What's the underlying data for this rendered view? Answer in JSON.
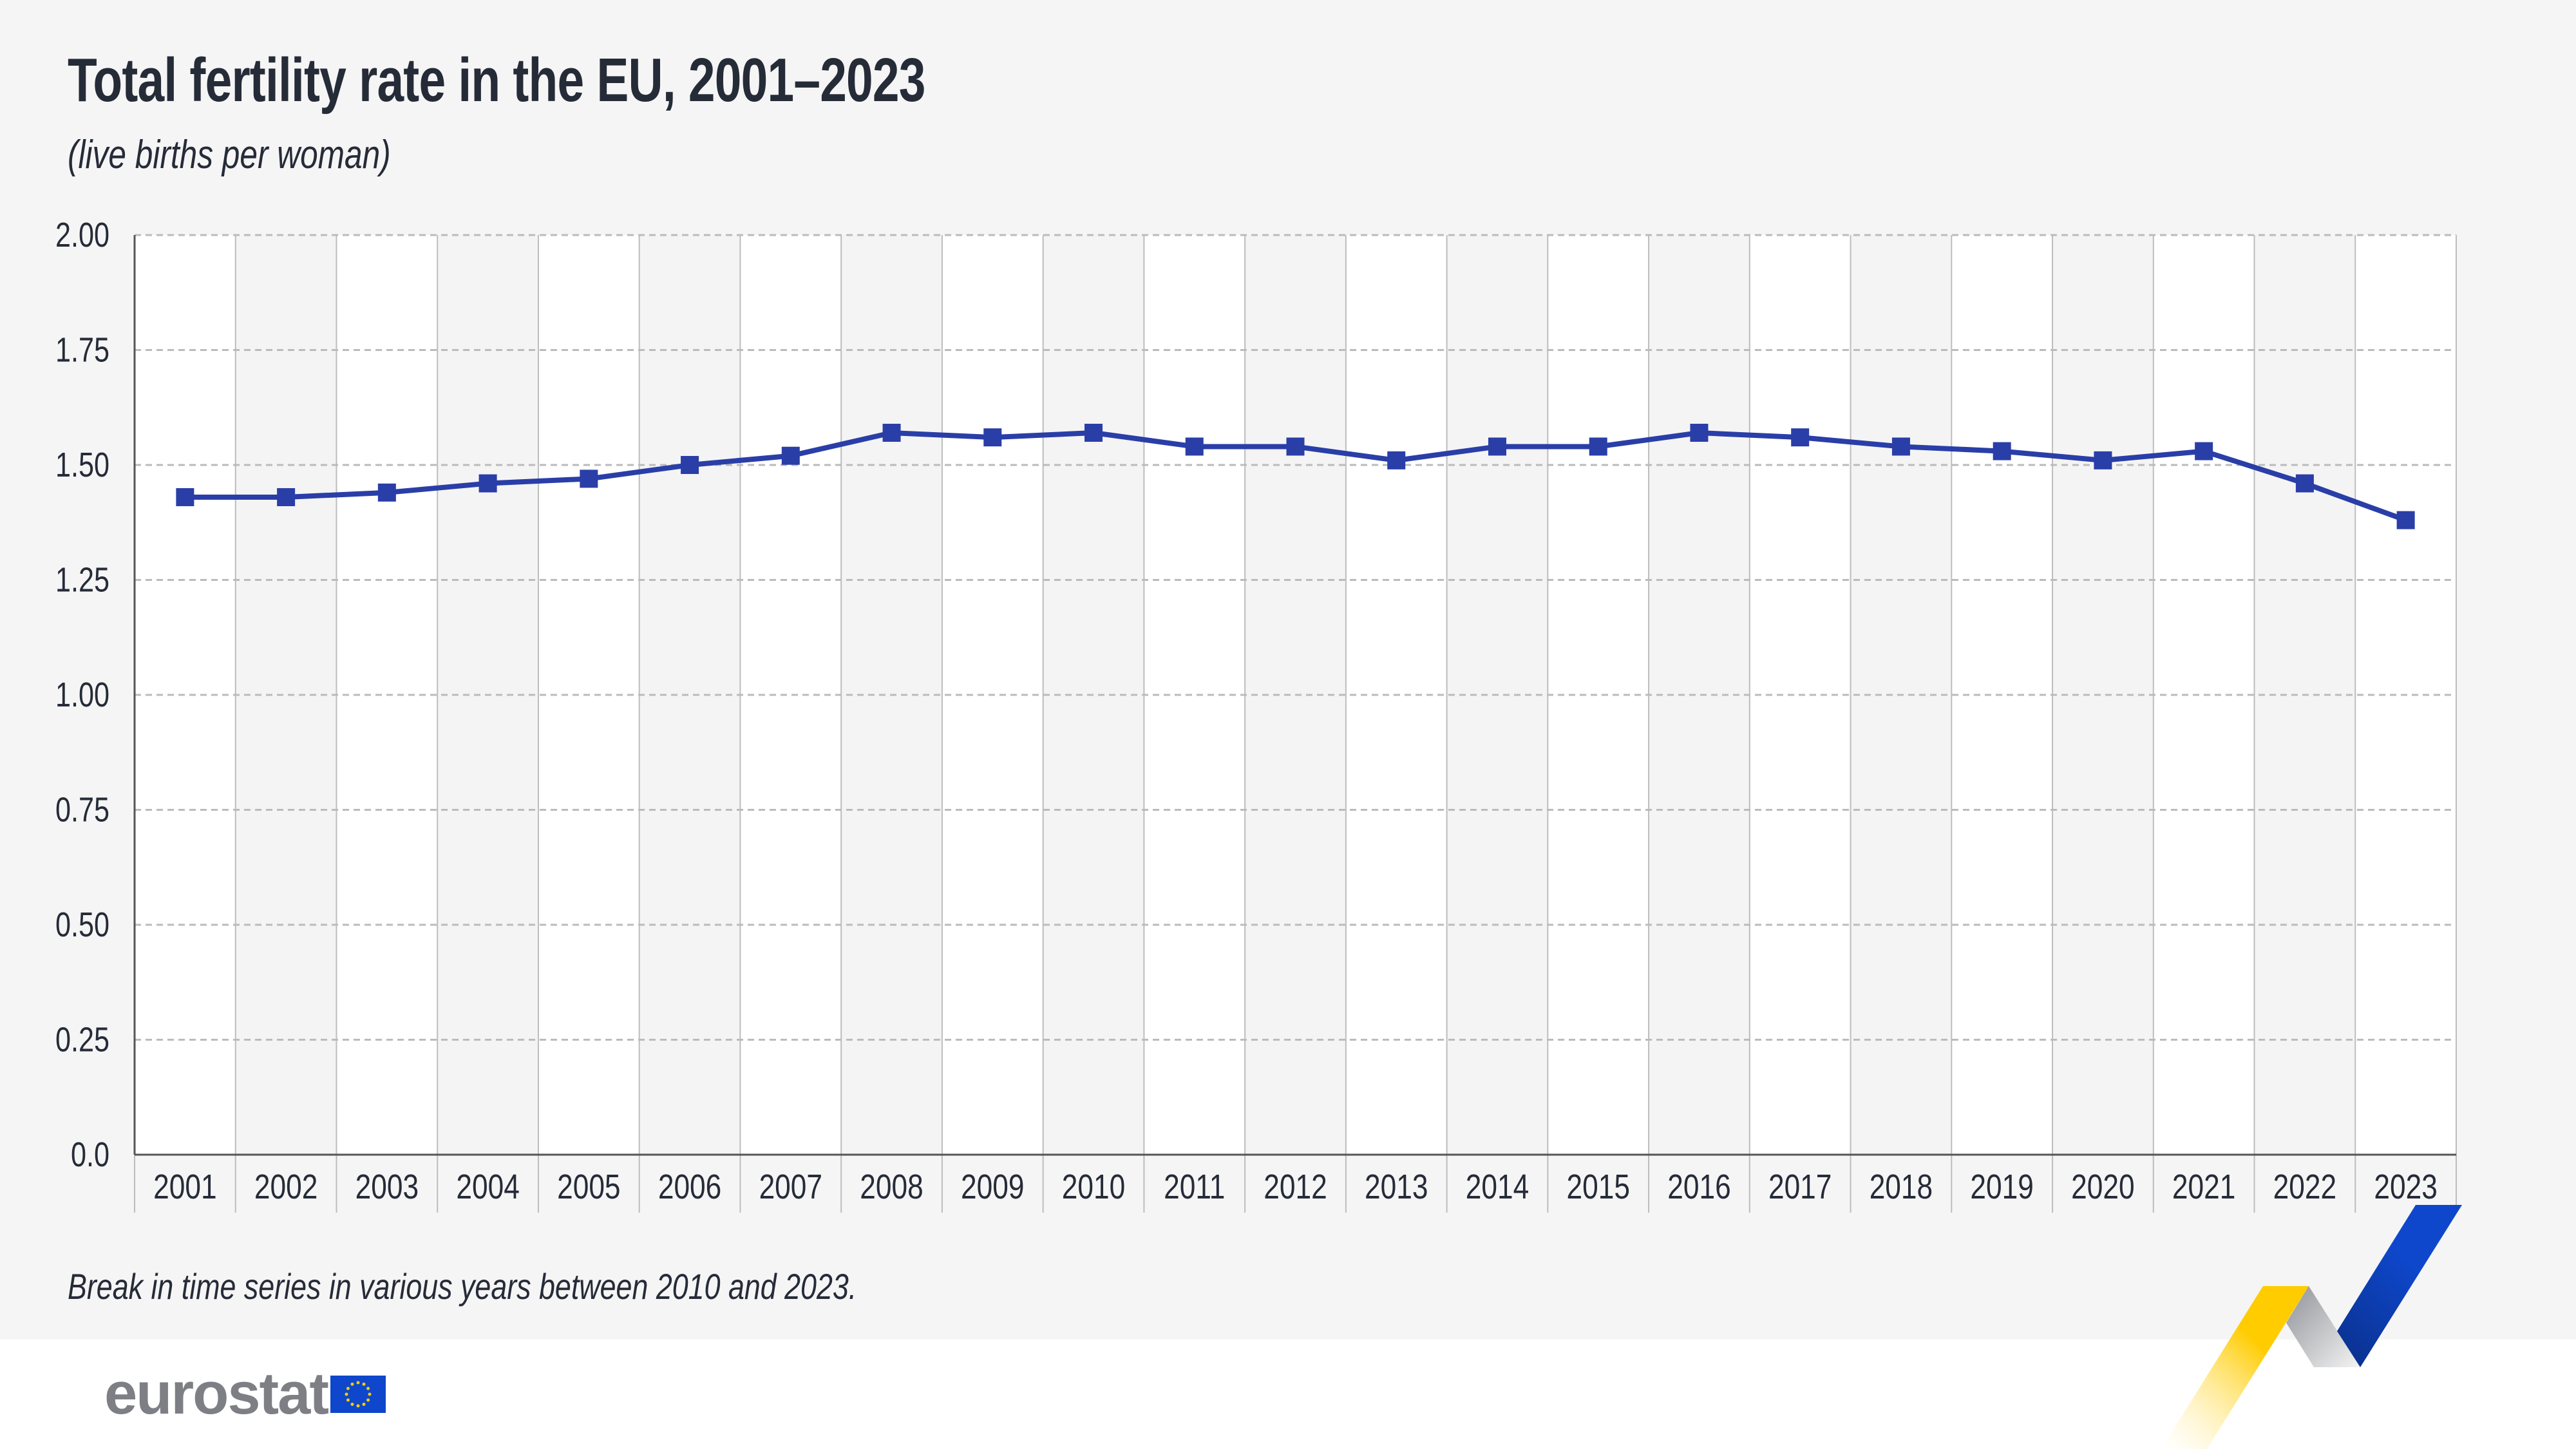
{
  "header": {
    "title": "Total fertility rate in the EU, 2001–2023",
    "subtitle": "(live births per woman)"
  },
  "footnote": "Break in time series in various years between 2010 and 2023.",
  "logo": {
    "text": "eurostat",
    "icon": "eu-flag-icon"
  },
  "colors": {
    "line": "#2a3ea8",
    "background": "#f5f5f5",
    "text": "#262b38",
    "accent_yellow": "#ffcc00",
    "accent_blue": "#0e47cb"
  },
  "chart_data": {
    "type": "line",
    "title": "Total fertility rate in the EU, 2001–2023",
    "ylabel": "(live births per woman)",
    "categories": [
      "2001",
      "2002",
      "2003",
      "2004",
      "2005",
      "2006",
      "2007",
      "2008",
      "2009",
      "2010",
      "2011",
      "2012",
      "2013",
      "2014",
      "2015",
      "2016",
      "2017",
      "2018",
      "2019",
      "2020",
      "2021",
      "2022",
      "2023"
    ],
    "values": [
      1.43,
      1.43,
      1.44,
      1.46,
      1.47,
      1.5,
      1.52,
      1.57,
      1.56,
      1.57,
      1.54,
      1.54,
      1.51,
      1.54,
      1.54,
      1.57,
      1.56,
      1.54,
      1.53,
      1.51,
      1.53,
      1.46,
      1.38
    ],
    "ylim": [
      0,
      2.0
    ],
    "yticks": [
      "0.0",
      "0.25",
      "0.50",
      "0.75",
      "1.00",
      "1.25",
      "1.50",
      "1.75",
      "2.00"
    ],
    "grid": true,
    "marker": "square",
    "legend": "none"
  }
}
